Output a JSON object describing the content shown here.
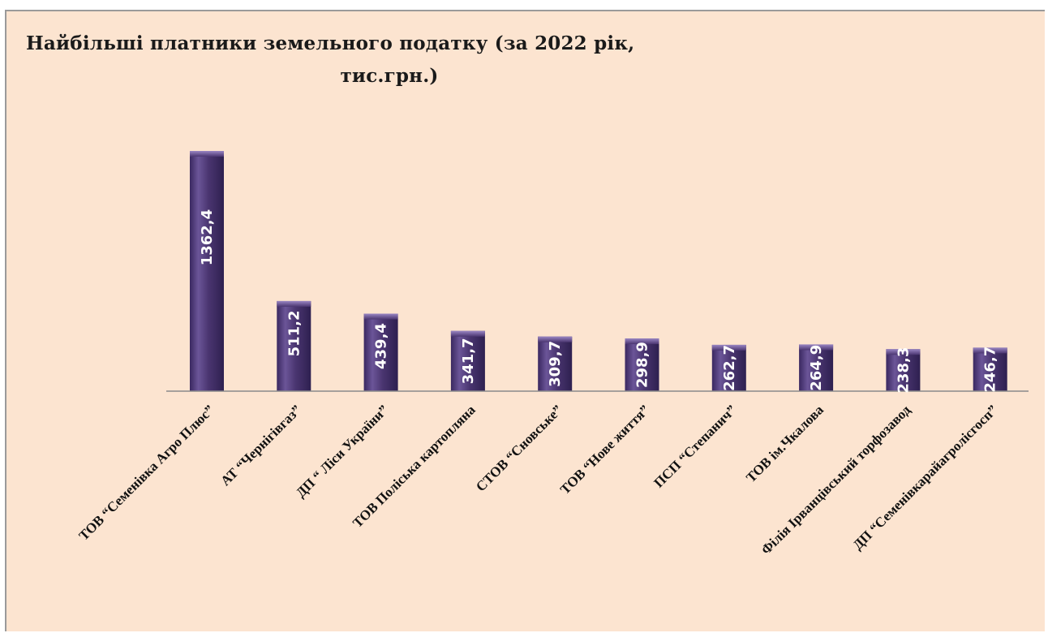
{
  "chart_data": {
    "type": "bar",
    "title_line1": "Найбільші платники земельного податку (за 2022 рік,",
    "title_line2": "тис.грн.)",
    "categories": [
      "ТОВ “Семенівка Агро Плюс”",
      "АТ “Чернігівгаз”",
      "ДП “ Ліси України”",
      "ТОВ Поліська картопляна",
      "СТОВ “Сновське”",
      "ТОВ “Нове життя”",
      "ПСП “Степанич”",
      "ТОВ ім.Чкалова",
      "Філія Ірванцівський торфозавод",
      "ДП “Семенівкарайагролісгосп”"
    ],
    "values": [
      1362.4,
      511.2,
      439.4,
      341.7,
      309.7,
      298.9,
      262.7,
      264.9,
      238.3,
      246.7
    ],
    "value_labels": [
      "1362,4",
      "511,2",
      "439,4",
      "341,7",
      "309,7",
      "298,9",
      "262,7",
      "264,9",
      "238,3",
      "246,7"
    ],
    "ylim": [
      0,
      1500
    ],
    "colors": {
      "bar": "#4a3570",
      "bar_highlight": "#7a62a8",
      "background": "#fce4d0",
      "axis": "#8a8a8a"
    }
  }
}
